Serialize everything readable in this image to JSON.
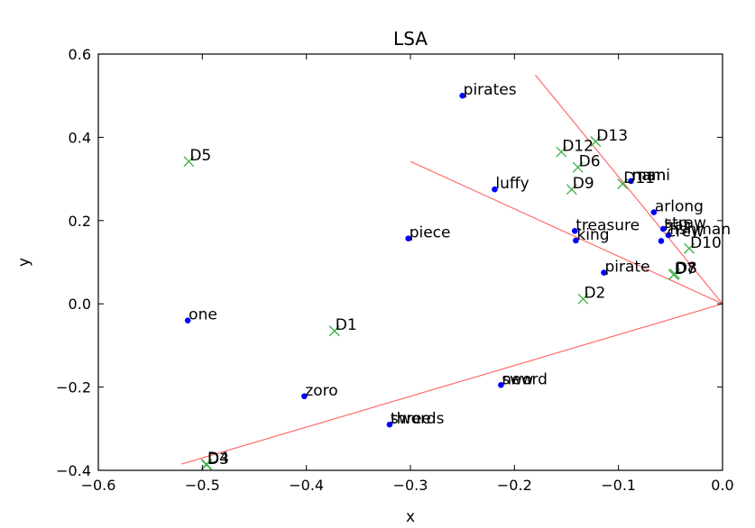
{
  "chart_data": {
    "type": "scatter",
    "title": "LSA",
    "xlabel": "x",
    "ylabel": "y",
    "xlim": [
      -0.6,
      0.0
    ],
    "ylim": [
      -0.4,
      0.6
    ],
    "x_ticks": [
      -0.6,
      -0.5,
      -0.4,
      -0.3,
      -0.2,
      -0.1,
      0.0
    ],
    "y_ticks": [
      -0.4,
      -0.2,
      0.0,
      0.2,
      0.4,
      0.6
    ],
    "x_tick_labels": [
      "−0.6",
      "−0.5",
      "−0.4",
      "−0.3",
      "−0.2",
      "−0.1",
      "0.0"
    ],
    "y_tick_labels": [
      "−0.4",
      "−0.2",
      "0.0",
      "0.2",
      "0.4",
      "0.6"
    ],
    "grid": false,
    "colors": {
      "words": "#0000ff",
      "documents": "#3cb043",
      "rays": "#ff6b6b"
    },
    "words": [
      {
        "label": "pirates",
        "x": -0.25,
        "y": 0.5
      },
      {
        "label": "nami",
        "x": -0.088,
        "y": 0.295
      },
      {
        "label": "luffy",
        "x": -0.219,
        "y": 0.275
      },
      {
        "label": "arlong",
        "x": -0.066,
        "y": 0.22
      },
      {
        "label": "treasure",
        "x": -0.142,
        "y": 0.175
      },
      {
        "label": "king",
        "x": -0.141,
        "y": 0.152
      },
      {
        "label": "piece",
        "x": -0.302,
        "y": 0.157
      },
      {
        "label": "pirate",
        "x": -0.114,
        "y": 0.075
      },
      {
        "label": "one",
        "x": -0.514,
        "y": -0.04
      },
      {
        "label": "zoro",
        "x": -0.402,
        "y": -0.222
      },
      {
        "label": "sword",
        "x": -0.213,
        "y": -0.195
      },
      {
        "label": "swords",
        "x": -0.32,
        "y": -0.29
      }
    ],
    "word_overlap_labels": [
      {
        "label": "man",
        "x": -0.088,
        "y": 0.295
      },
      {
        "label": "straw",
        "x": -0.057,
        "y": 0.18
      },
      {
        "label": "hat",
        "x": -0.057,
        "y": 0.175
      },
      {
        "label": "crew",
        "x": -0.054,
        "y": 0.16
      },
      {
        "label": "fishman",
        "x": -0.052,
        "y": 0.165
      },
      {
        "label": "new",
        "x": -0.213,
        "y": -0.195
      },
      {
        "label": "three",
        "x": -0.32,
        "y": -0.29
      }
    ],
    "word_extra_points": [
      {
        "x": -0.057,
        "y": 0.18
      },
      {
        "x": -0.052,
        "y": 0.165
      },
      {
        "x": -0.059,
        "y": 0.151
      }
    ],
    "documents": [
      {
        "label": "D1",
        "x": -0.373,
        "y": -0.065
      },
      {
        "label": "D2",
        "x": -0.134,
        "y": 0.012
      },
      {
        "label": "D3",
        "x": -0.496,
        "y": -0.387
      },
      {
        "label": "D4",
        "x": -0.496,
        "y": -0.385
      },
      {
        "label": "D5",
        "x": -0.513,
        "y": 0.342
      },
      {
        "label": "D6",
        "x": -0.139,
        "y": 0.328
      },
      {
        "label": "D7",
        "x": -0.047,
        "y": 0.07
      },
      {
        "label": "D8",
        "x": -0.046,
        "y": 0.072
      },
      {
        "label": "D9",
        "x": -0.145,
        "y": 0.275
      },
      {
        "label": "D10",
        "x": -0.032,
        "y": 0.133
      },
      {
        "label": "D11",
        "x": -0.096,
        "y": 0.288
      },
      {
        "label": "D12",
        "x": -0.155,
        "y": 0.365
      },
      {
        "label": "D13",
        "x": -0.122,
        "y": 0.39
      }
    ],
    "rays": [
      {
        "x": -0.18,
        "y": 0.55
      },
      {
        "x": -0.3,
        "y": 0.342
      },
      {
        "x": -0.52,
        "y": -0.385
      }
    ]
  }
}
